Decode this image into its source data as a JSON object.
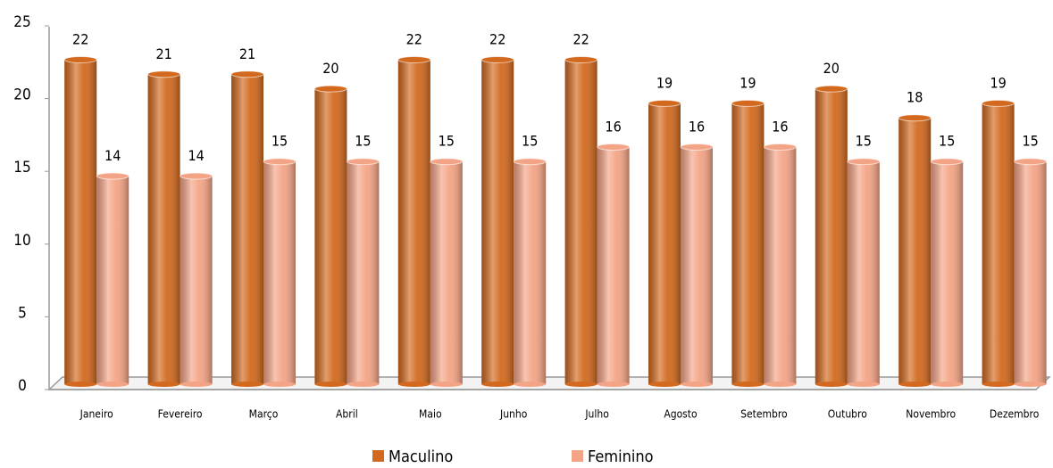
{
  "chart_data": {
    "type": "bar",
    "categories": [
      "Janeiro",
      "Fevereiro",
      "Março",
      "Abril",
      "Maio",
      "Junho",
      "Julho",
      "Agosto",
      "Setembro",
      "Outubro",
      "Novembro",
      "Dezembro"
    ],
    "series": [
      {
        "name": "Maculino",
        "color": "#d2691e",
        "values": [
          22,
          21,
          21,
          20,
          22,
          22,
          22,
          19,
          19,
          20,
          18,
          19
        ]
      },
      {
        "name": "Feminino",
        "color": "#f4a486",
        "values": [
          14,
          14,
          15,
          15,
          15,
          15,
          16,
          16,
          16,
          15,
          15,
          15
        ]
      }
    ],
    "ylim": [
      0,
      25
    ],
    "yticks": [
      0,
      5,
      10,
      15,
      20,
      25
    ],
    "grid": false,
    "legend": "bottom"
  }
}
